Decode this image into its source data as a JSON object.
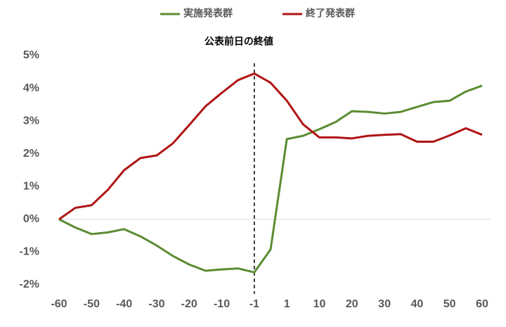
{
  "chart_data": {
    "type": "line",
    "categories": [
      "-60",
      null,
      "-50",
      null,
      "-40",
      null,
      "-30",
      null,
      "-20",
      null,
      "-10",
      null,
      "-1",
      null,
      "1",
      null,
      "10",
      null,
      "20",
      null,
      "30",
      null,
      "40",
      null,
      "50",
      null,
      "60"
    ],
    "series": [
      {
        "name": "実施発表群",
        "color": "#5b8c32",
        "values": [
          0,
          -0.25,
          -0.45,
          -0.4,
          -0.3,
          -0.52,
          -0.8,
          -1.12,
          -1.38,
          -1.57,
          -1.53,
          -1.5,
          -1.62,
          -0.92,
          2.45,
          2.55,
          2.75,
          2.97,
          3.3,
          3.28,
          3.23,
          3.28,
          3.43,
          3.58,
          3.62,
          3.9,
          4.08
        ]
      },
      {
        "name": "終了発表群",
        "color": "#b01414",
        "values": [
          0,
          0.35,
          0.43,
          0.9,
          1.5,
          1.87,
          1.95,
          2.32,
          2.88,
          3.45,
          3.86,
          4.25,
          4.45,
          4.17,
          3.62,
          2.9,
          2.5,
          2.5,
          2.47,
          2.55,
          2.58,
          2.6,
          2.37,
          2.37,
          2.56,
          2.78,
          2.58
        ]
      }
    ],
    "ylim": [
      -2,
      5
    ],
    "yticks": [
      {
        "value": -2,
        "label": "-2%"
      },
      {
        "value": -1,
        "label": "-1%"
      },
      {
        "value": 0,
        "label": "0%"
      },
      {
        "value": 1,
        "label": "1%"
      },
      {
        "value": 2,
        "label": "2%"
      },
      {
        "value": 3,
        "label": "3%"
      },
      {
        "value": 4,
        "label": "4%"
      },
      {
        "value": 5,
        "label": "5%"
      }
    ],
    "annotation": {
      "text": "公表前日の終値",
      "x": "-1"
    },
    "legend": "top"
  }
}
